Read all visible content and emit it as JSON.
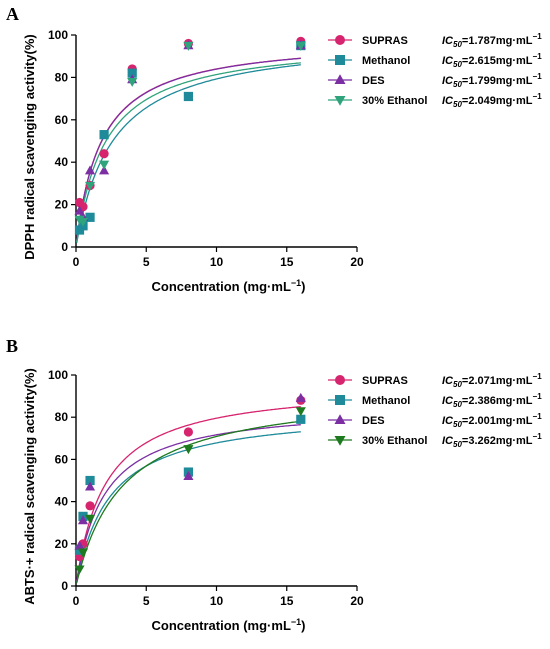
{
  "chart_data": [
    {
      "panel": "A",
      "type": "scatter",
      "xlabel": "Concentration (mg·mL",
      "xlabel_sup": "−1",
      "xlabel_close": ")",
      "ylabel": "DPPH radical scavenging activity(%)",
      "xlim": [
        0,
        20
      ],
      "ylim": [
        0,
        100
      ],
      "x_ticks": [
        0,
        5,
        10,
        15,
        20
      ],
      "y_ticks": [
        0,
        20,
        40,
        60,
        80,
        100
      ],
      "x_tick_labels": [
        "0",
        "5",
        "10",
        "15",
        "20"
      ],
      "y_tick_labels": [
        "0",
        "20",
        "40",
        "60",
        "80",
        "100"
      ],
      "series": [
        {
          "name": "SUPRAS",
          "marker": "circle",
          "color": "#d6246e",
          "ic_text": "=1.787mg·mL",
          "x": [
            0.25,
            0.5,
            1,
            2,
            4,
            8,
            16
          ],
          "y": [
            21,
            19,
            29,
            44,
            84,
            96,
            97
          ],
          "curve_top": 99,
          "curve_ic50": 1.787
        },
        {
          "name": "Methanol",
          "marker": "square",
          "color": "#1f8a99",
          "ic_text": "=2.615mg·mL",
          "x": [
            0.25,
            0.5,
            1,
            2,
            4,
            8,
            16
          ],
          "y": [
            8,
            10,
            14,
            53,
            82,
            71,
            95
          ],
          "curve_top": 100,
          "curve_ic50": 2.615
        },
        {
          "name": "DES",
          "marker": "triangle-up",
          "color": "#7b2fa3",
          "ic_text": "=1.799mg·mL",
          "x": [
            0.25,
            0.5,
            1,
            2,
            4,
            8,
            16
          ],
          "y": [
            17,
            14,
            36,
            36,
            79,
            95,
            95
          ],
          "curve_top": 99,
          "curve_ic50": 1.799
        },
        {
          "name": "30% Ethanol",
          "marker": "triangle-down",
          "color": "#2fa37b",
          "ic_text": "=2.049mg·mL",
          "x": [
            0.25,
            0.5,
            1,
            2,
            4,
            8,
            16
          ],
          "y": [
            13,
            12,
            29,
            39,
            78,
            95,
            95
          ],
          "curve_top": 98,
          "curve_ic50": 2.049
        }
      ]
    },
    {
      "panel": "B",
      "type": "scatter",
      "xlabel": "Concentration (mg·mL",
      "xlabel_sup": "−1",
      "xlabel_close": ")",
      "ylabel": "ABTS·+ radical scavenging activity(%)",
      "xlim": [
        0,
        20
      ],
      "ylim": [
        0,
        100
      ],
      "x_ticks": [
        0,
        5,
        10,
        15,
        20
      ],
      "y_ticks": [
        0,
        20,
        40,
        60,
        80,
        100
      ],
      "x_tick_labels": [
        "0",
        "5",
        "10",
        "15",
        "20"
      ],
      "y_tick_labels": [
        "0",
        "20",
        "40",
        "60",
        "80",
        "100"
      ],
      "series": [
        {
          "name": "SUPRAS",
          "marker": "circle",
          "color": "#d6246e",
          "ic_text": "=2.071mg·mL",
          "x": [
            0.25,
            0.5,
            1,
            8,
            16
          ],
          "y": [
            14,
            20,
            38,
            73,
            88
          ],
          "curve_top": 96,
          "curve_ic50": 2.071
        },
        {
          "name": "Methanol",
          "marker": "square",
          "color": "#1f8a99",
          "ic_text": "=2.386mg·mL",
          "x": [
            0.25,
            0.5,
            1,
            8,
            16
          ],
          "y": [
            17,
            33,
            50,
            54,
            79
          ],
          "curve_top": 84,
          "curve_ic50": 2.386
        },
        {
          "name": "DES",
          "marker": "triangle-up",
          "color": "#7b2fa3",
          "ic_text": "=2.001mg·mL",
          "x": [
            0.25,
            0.5,
            1,
            8,
            16
          ],
          "y": [
            19,
            31,
            47,
            52,
            89
          ],
          "curve_top": 86,
          "curve_ic50": 2.001
        },
        {
          "name": "30% Ethanol",
          "marker": "triangle-down",
          "color": "#1e7a1e",
          "ic_text": "=3.262mg·mL",
          "x": [
            0.25,
            0.5,
            1,
            8,
            16
          ],
          "y": [
            8,
            16,
            32,
            65,
            83
          ],
          "curve_top": 94,
          "curve_ic50": 3.262
        }
      ]
    }
  ],
  "ic_prefix": "IC",
  "ic_sub": "50",
  "ic_unit_sup": "−1"
}
